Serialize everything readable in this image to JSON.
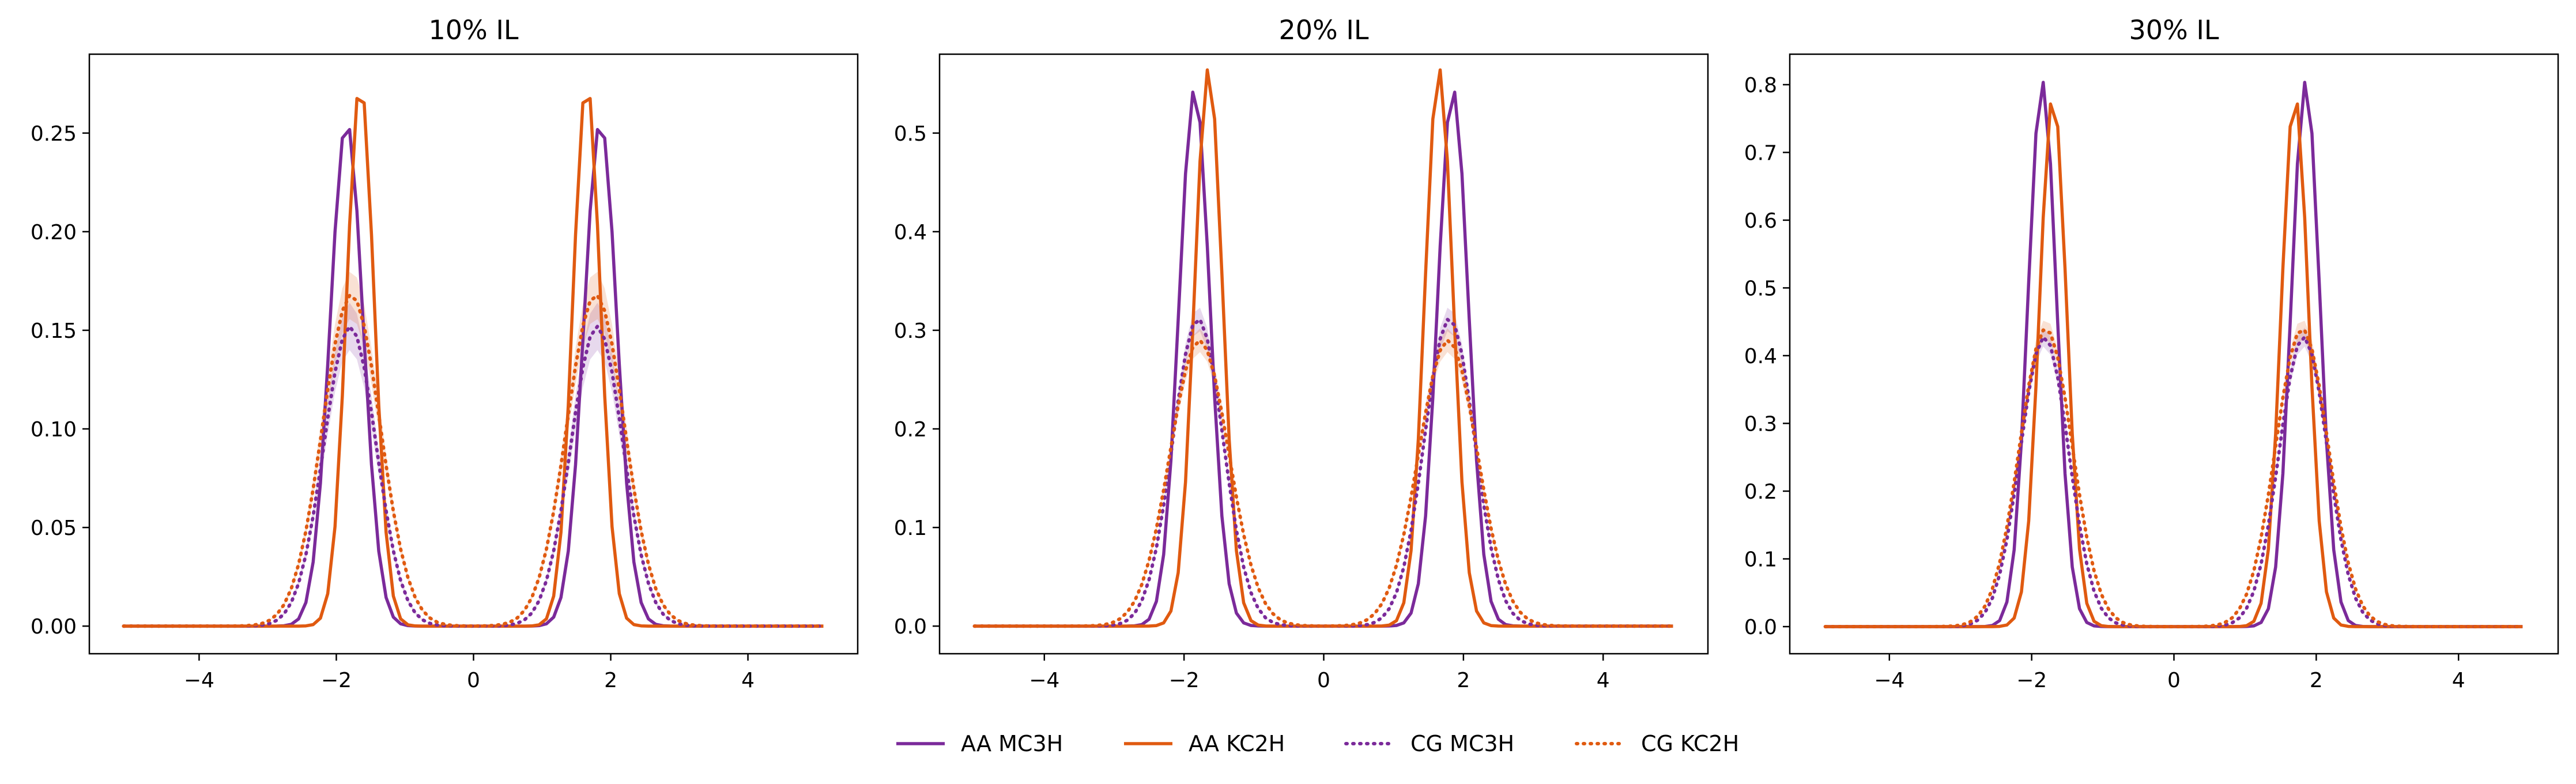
{
  "colors": {
    "mc3h": "#7b2a9a",
    "kc2h": "#e05a10"
  },
  "legend": [
    {
      "label": "AA MC3H",
      "style": "solid",
      "color": "#7b2a9a"
    },
    {
      "label": "AA KC2H",
      "style": "solid",
      "color": "#e05a10"
    },
    {
      "label": "CG MC3H",
      "style": "dotted",
      "color": "#7b2a9a"
    },
    {
      "label": "CG KC2H",
      "style": "dotted",
      "color": "#e05a10"
    }
  ],
  "chart_data": [
    {
      "type": "line",
      "title": "10% IL",
      "xlim": [
        -5.6,
        5.6
      ],
      "ylim": [
        -0.014,
        0.29
      ],
      "xticks": [
        -4,
        -2,
        0,
        2,
        4
      ],
      "xtick_labels": [
        "−4",
        "−2",
        "0",
        "2",
        "4"
      ],
      "yticks": [
        0.0,
        0.05,
        0.1,
        0.15,
        0.2,
        0.25
      ],
      "ytick_labels": [
        "0.00",
        "0.05",
        "0.10",
        "0.15",
        "0.20",
        "0.25"
      ],
      "x_range": [
        -5.1,
        5.1
      ],
      "series": [
        {
          "name": "AA MC3H",
          "style": "solid",
          "color": "#7b2a9a",
          "peak_x": [
            -1.85,
            1.85
          ],
          "peak_y": [
            0.256,
            0.256
          ],
          "width": 0.24,
          "band": 0
        },
        {
          "name": "AA KC2H",
          "style": "solid",
          "color": "#e05a10",
          "peak_x": [
            -1.65,
            1.65
          ],
          "peak_y": [
            0.276,
            0.276
          ],
          "width": 0.2,
          "band": 0
        },
        {
          "name": "CG MC3H",
          "style": "dotted",
          "color": "#7b2a9a",
          "peak_x": [
            -1.8,
            1.8
          ],
          "peak_y": [
            0.152,
            0.152
          ],
          "width": 0.38,
          "band": 0.012
        },
        {
          "name": "CG KC2H",
          "style": "dotted",
          "color": "#e05a10",
          "peak_x": [
            -1.78,
            1.78
          ],
          "peak_y": [
            0.168,
            0.168
          ],
          "width": 0.42,
          "band": 0.012
        }
      ]
    },
    {
      "type": "line",
      "title": "20% IL",
      "xlim": [
        -5.5,
        5.5
      ],
      "ylim": [
        -0.028,
        0.58
      ],
      "xticks": [
        -4,
        -2,
        0,
        2,
        4
      ],
      "xtick_labels": [
        "−4",
        "−2",
        "0",
        "2",
        "4"
      ],
      "yticks": [
        0.0,
        0.1,
        0.2,
        0.3,
        0.4,
        0.5
      ],
      "ytick_labels": [
        "0.0",
        "0.1",
        "0.2",
        "0.3",
        "0.4",
        "0.5"
      ],
      "x_range": [
        -5.0,
        5.0
      ],
      "series": [
        {
          "name": "AA MC3H",
          "style": "solid",
          "color": "#7b2a9a",
          "peak_x": [
            -1.85,
            1.85
          ],
          "peak_y": [
            0.545,
            0.545
          ],
          "width": 0.22,
          "band": 0
        },
        {
          "name": "AA KC2H",
          "style": "solid",
          "color": "#e05a10",
          "peak_x": [
            -1.65,
            1.65
          ],
          "peak_y": [
            0.566,
            0.566
          ],
          "width": 0.2,
          "band": 0
        },
        {
          "name": "CG MC3H",
          "style": "dotted",
          "color": "#7b2a9a",
          "peak_x": [
            -1.8,
            1.8
          ],
          "peak_y": [
            0.312,
            0.312
          ],
          "width": 0.36,
          "band": 0.012
        },
        {
          "name": "CG KC2H",
          "style": "dotted",
          "color": "#e05a10",
          "peak_x": [
            -1.78,
            1.78
          ],
          "peak_y": [
            0.29,
            0.29
          ],
          "width": 0.42,
          "band": 0.012
        }
      ]
    },
    {
      "type": "line",
      "title": "30% IL",
      "xlim": [
        -5.4,
        5.4
      ],
      "ylim": [
        -0.04,
        0.845
      ],
      "xticks": [
        -4,
        -2,
        0,
        2,
        4
      ],
      "xtick_labels": [
        "−4",
        "−2",
        "0",
        "2",
        "4"
      ],
      "yticks": [
        0.0,
        0.1,
        0.2,
        0.3,
        0.4,
        0.5,
        0.6,
        0.7,
        0.8
      ],
      "ytick_labels": [
        "0.0",
        "0.1",
        "0.2",
        "0.3",
        "0.4",
        "0.5",
        "0.6",
        "0.7",
        "0.8"
      ],
      "x_range": [
        -4.9,
        4.9
      ],
      "series": [
        {
          "name": "AA MC3H",
          "style": "solid",
          "color": "#7b2a9a",
          "peak_x": [
            -1.85,
            1.85
          ],
          "peak_y": [
            0.805,
            0.805
          ],
          "width": 0.2,
          "band": 0
        },
        {
          "name": "AA KC2H",
          "style": "solid",
          "color": "#e05a10",
          "peak_x": [
            -1.7,
            1.7
          ],
          "peak_y": [
            0.785,
            0.785
          ],
          "width": 0.19,
          "band": 0
        },
        {
          "name": "CG MC3H",
          "style": "dotted",
          "color": "#7b2a9a",
          "peak_x": [
            -1.82,
            1.82
          ],
          "peak_y": [
            0.428,
            0.428
          ],
          "width": 0.34,
          "band": 0.014
        },
        {
          "name": "CG KC2H",
          "style": "dotted",
          "color": "#e05a10",
          "peak_x": [
            -1.8,
            1.8
          ],
          "peak_y": [
            0.44,
            0.44
          ],
          "width": 0.37,
          "band": 0.014
        }
      ]
    }
  ]
}
